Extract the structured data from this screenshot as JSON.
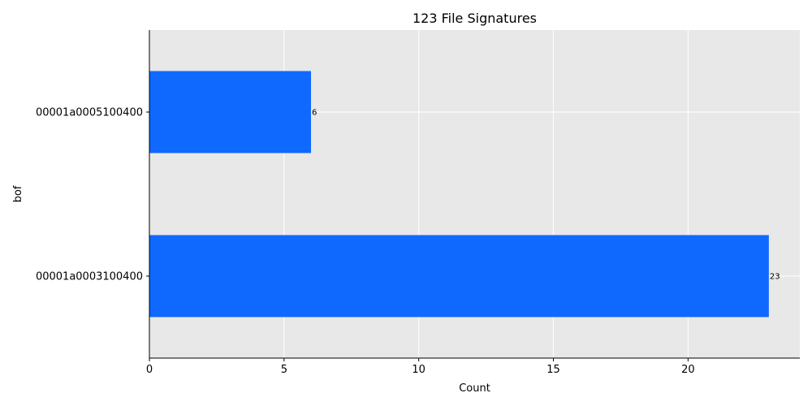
{
  "chart_data": {
    "type": "bar",
    "orientation": "horizontal",
    "title": "123 File Signatures",
    "xlabel": "Count",
    "ylabel": "bof",
    "categories": [
      "00001a0005100400",
      "00001a0003100400"
    ],
    "values": [
      6,
      23
    ],
    "data_labels": [
      "6",
      "23"
    ],
    "xlim": [
      0,
      24.15
    ],
    "xticks": [
      0,
      5,
      10,
      15,
      20
    ],
    "xtick_labels": [
      "0",
      "5",
      "10",
      "15",
      "20"
    ],
    "grid": true,
    "colors": {
      "bar": "#0f69ff",
      "plot_background": "#e8e8e8",
      "grid": "#ffffff"
    }
  }
}
